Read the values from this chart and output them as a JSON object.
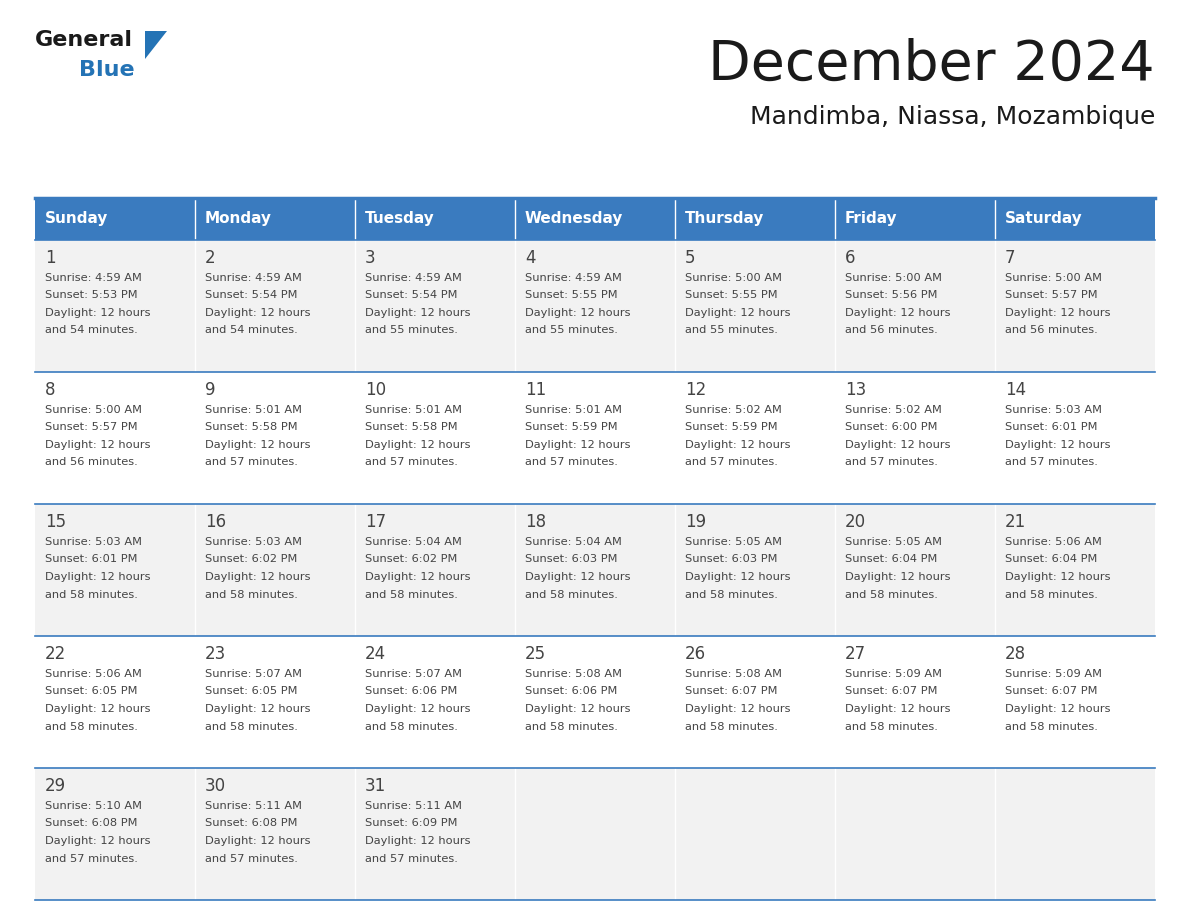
{
  "title": "December 2024",
  "subtitle": "Mandimba, Niassa, Mozambique",
  "days_of_week": [
    "Sunday",
    "Monday",
    "Tuesday",
    "Wednesday",
    "Thursday",
    "Friday",
    "Saturday"
  ],
  "header_bg": "#3a7bbf",
  "header_text": "#ffffff",
  "row_bg": [
    "#f2f2f2",
    "#ffffff",
    "#f2f2f2",
    "#ffffff",
    "#f2f2f2"
  ],
  "border_color": "#3a7bbf",
  "text_color": "#444444",
  "calendar": [
    [
      {
        "day": 1,
        "sunrise": "4:59 AM",
        "sunset": "5:53 PM",
        "daylight": "12 hours and 54 minutes."
      },
      {
        "day": 2,
        "sunrise": "4:59 AM",
        "sunset": "5:54 PM",
        "daylight": "12 hours and 54 minutes."
      },
      {
        "day": 3,
        "sunrise": "4:59 AM",
        "sunset": "5:54 PM",
        "daylight": "12 hours and 55 minutes."
      },
      {
        "day": 4,
        "sunrise": "4:59 AM",
        "sunset": "5:55 PM",
        "daylight": "12 hours and 55 minutes."
      },
      {
        "day": 5,
        "sunrise": "5:00 AM",
        "sunset": "5:55 PM",
        "daylight": "12 hours and 55 minutes."
      },
      {
        "day": 6,
        "sunrise": "5:00 AM",
        "sunset": "5:56 PM",
        "daylight": "12 hours and 56 minutes."
      },
      {
        "day": 7,
        "sunrise": "5:00 AM",
        "sunset": "5:57 PM",
        "daylight": "12 hours and 56 minutes."
      }
    ],
    [
      {
        "day": 8,
        "sunrise": "5:00 AM",
        "sunset": "5:57 PM",
        "daylight": "12 hours and 56 minutes."
      },
      {
        "day": 9,
        "sunrise": "5:01 AM",
        "sunset": "5:58 PM",
        "daylight": "12 hours and 57 minutes."
      },
      {
        "day": 10,
        "sunrise": "5:01 AM",
        "sunset": "5:58 PM",
        "daylight": "12 hours and 57 minutes."
      },
      {
        "day": 11,
        "sunrise": "5:01 AM",
        "sunset": "5:59 PM",
        "daylight": "12 hours and 57 minutes."
      },
      {
        "day": 12,
        "sunrise": "5:02 AM",
        "sunset": "5:59 PM",
        "daylight": "12 hours and 57 minutes."
      },
      {
        "day": 13,
        "sunrise": "5:02 AM",
        "sunset": "6:00 PM",
        "daylight": "12 hours and 57 minutes."
      },
      {
        "day": 14,
        "sunrise": "5:03 AM",
        "sunset": "6:01 PM",
        "daylight": "12 hours and 57 minutes."
      }
    ],
    [
      {
        "day": 15,
        "sunrise": "5:03 AM",
        "sunset": "6:01 PM",
        "daylight": "12 hours and 58 minutes."
      },
      {
        "day": 16,
        "sunrise": "5:03 AM",
        "sunset": "6:02 PM",
        "daylight": "12 hours and 58 minutes."
      },
      {
        "day": 17,
        "sunrise": "5:04 AM",
        "sunset": "6:02 PM",
        "daylight": "12 hours and 58 minutes."
      },
      {
        "day": 18,
        "sunrise": "5:04 AM",
        "sunset": "6:03 PM",
        "daylight": "12 hours and 58 minutes."
      },
      {
        "day": 19,
        "sunrise": "5:05 AM",
        "sunset": "6:03 PM",
        "daylight": "12 hours and 58 minutes."
      },
      {
        "day": 20,
        "sunrise": "5:05 AM",
        "sunset": "6:04 PM",
        "daylight": "12 hours and 58 minutes."
      },
      {
        "day": 21,
        "sunrise": "5:06 AM",
        "sunset": "6:04 PM",
        "daylight": "12 hours and 58 minutes."
      }
    ],
    [
      {
        "day": 22,
        "sunrise": "5:06 AM",
        "sunset": "6:05 PM",
        "daylight": "12 hours and 58 minutes."
      },
      {
        "day": 23,
        "sunrise": "5:07 AM",
        "sunset": "6:05 PM",
        "daylight": "12 hours and 58 minutes."
      },
      {
        "day": 24,
        "sunrise": "5:07 AM",
        "sunset": "6:06 PM",
        "daylight": "12 hours and 58 minutes."
      },
      {
        "day": 25,
        "sunrise": "5:08 AM",
        "sunset": "6:06 PM",
        "daylight": "12 hours and 58 minutes."
      },
      {
        "day": 26,
        "sunrise": "5:08 AM",
        "sunset": "6:07 PM",
        "daylight": "12 hours and 58 minutes."
      },
      {
        "day": 27,
        "sunrise": "5:09 AM",
        "sunset": "6:07 PM",
        "daylight": "12 hours and 58 minutes."
      },
      {
        "day": 28,
        "sunrise": "5:09 AM",
        "sunset": "6:07 PM",
        "daylight": "12 hours and 58 minutes."
      }
    ],
    [
      {
        "day": 29,
        "sunrise": "5:10 AM",
        "sunset": "6:08 PM",
        "daylight": "12 hours and 57 minutes."
      },
      {
        "day": 30,
        "sunrise": "5:11 AM",
        "sunset": "6:08 PM",
        "daylight": "12 hours and 57 minutes."
      },
      {
        "day": 31,
        "sunrise": "5:11 AM",
        "sunset": "6:09 PM",
        "daylight": "12 hours and 57 minutes."
      },
      null,
      null,
      null,
      null
    ]
  ],
  "logo_general_color": "#1a1a1a",
  "logo_blue_color": "#2473b5",
  "logo_triangle_color": "#2473b5"
}
